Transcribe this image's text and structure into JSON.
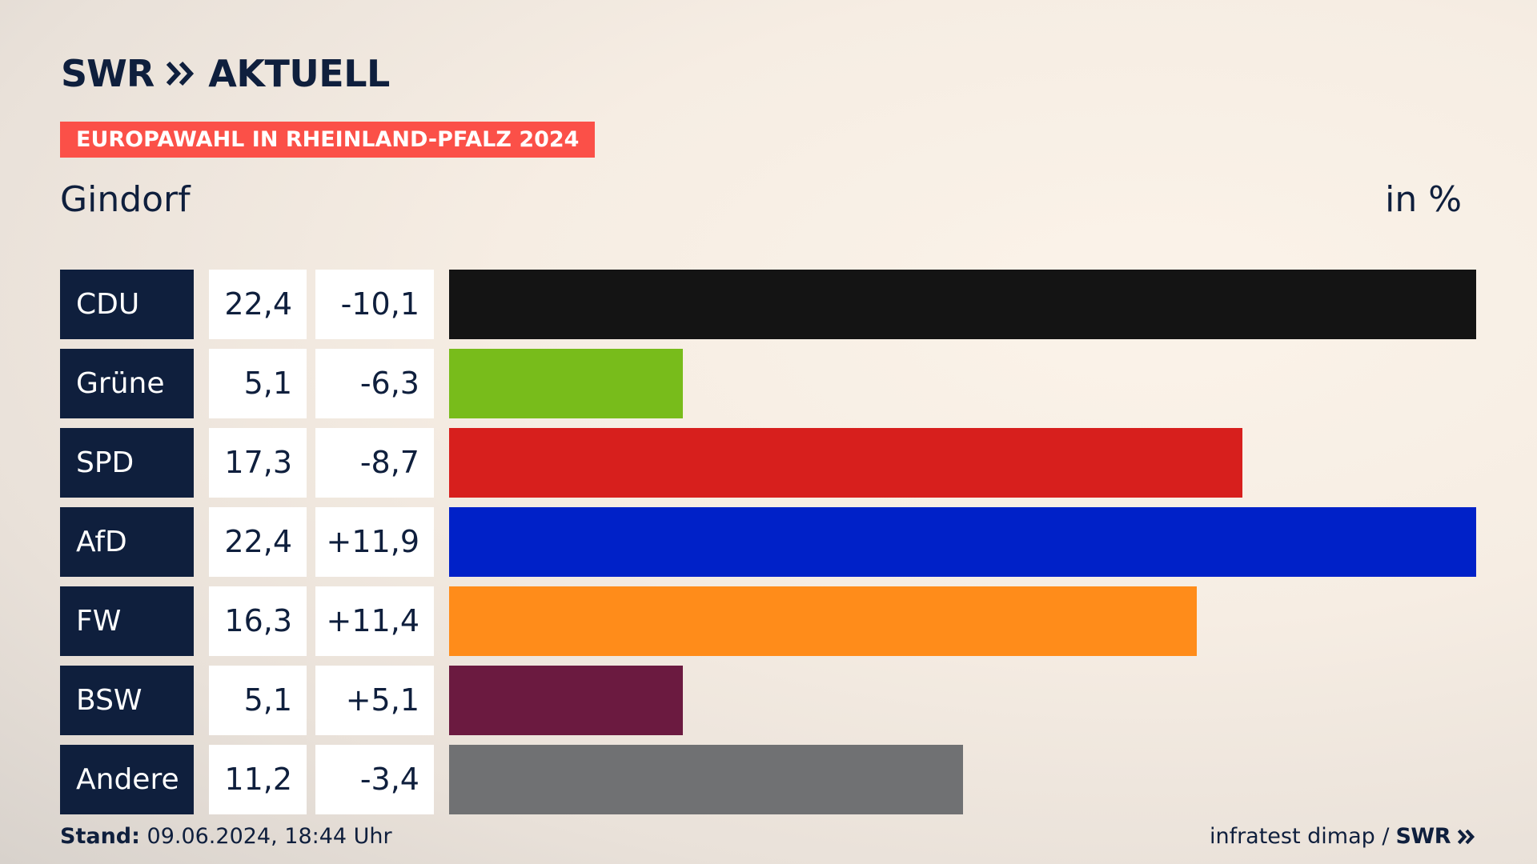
{
  "brand": {
    "swr": "SWR",
    "aktuell": "AKTUELL"
  },
  "banner": "EUROPAWAHL IN RHEINLAND-PFALZ 2024",
  "place": "Gindorf",
  "unit": "in %",
  "footer": {
    "stand_label": "Stand:",
    "stand_value": "09.06.2024, 18:44 Uhr",
    "source": "infratest dimap /",
    "source_brand": "SWR"
  },
  "colors": {
    "navy": "#0f1f3d",
    "banner": "#fb5048"
  },
  "chart_data": {
    "type": "bar",
    "orientation": "horizontal",
    "categories": [
      "CDU",
      "Grüne",
      "SPD",
      "AfD",
      "FW",
      "BSW",
      "Andere"
    ],
    "values": [
      22.4,
      5.1,
      17.3,
      22.4,
      16.3,
      5.1,
      11.2
    ],
    "value_labels": [
      "22,4",
      "5,1",
      "17,3",
      "22,4",
      "16,3",
      "5,1",
      "11,2"
    ],
    "diff_values": [
      -10.1,
      -6.3,
      -8.7,
      11.9,
      11.4,
      5.1,
      -3.4
    ],
    "diff_labels": [
      "-10,1",
      "-6,3",
      "-8,7",
      "+11,9",
      "+11,4",
      "+5,1",
      "-3,4"
    ],
    "colors": [
      "#141414",
      "#78bc1b",
      "#d71f1d",
      "#0021c8",
      "#ff8c1a",
      "#6b1a40",
      "#707173"
    ],
    "title": "Gindorf",
    "xlim": [
      0,
      22.4
    ],
    "grid": false,
    "legend": "none"
  }
}
